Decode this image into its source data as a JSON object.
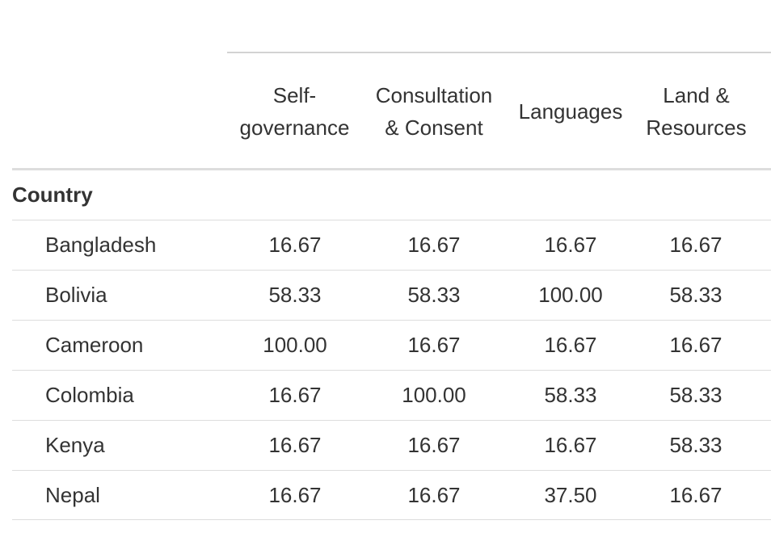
{
  "table": {
    "columns": [
      {
        "label_line1": "Self-",
        "label_line2": "governance"
      },
      {
        "label_line1": "Consultation",
        "label_line2": "& Consent"
      },
      {
        "label_line1": "Languages",
        "label_line2": ""
      },
      {
        "label_line1": "Land &",
        "label_line2": "Resources"
      }
    ],
    "group_label": "Country",
    "rows": [
      {
        "country": "Bangladesh",
        "values": [
          "16.67",
          "16.67",
          "16.67",
          "16.67"
        ]
      },
      {
        "country": "Bolivia",
        "values": [
          "58.33",
          "58.33",
          "100.00",
          "58.33"
        ]
      },
      {
        "country": "Cameroon",
        "values": [
          "100.00",
          "16.67",
          "16.67",
          "16.67"
        ]
      },
      {
        "country": "Colombia",
        "values": [
          "16.67",
          "100.00",
          "58.33",
          "58.33"
        ]
      },
      {
        "country": "Kenya",
        "values": [
          "16.67",
          "16.67",
          "16.67",
          "58.33"
        ]
      },
      {
        "country": "Nepal",
        "values": [
          "16.67",
          "16.67",
          "37.50",
          "16.67"
        ]
      }
    ]
  }
}
